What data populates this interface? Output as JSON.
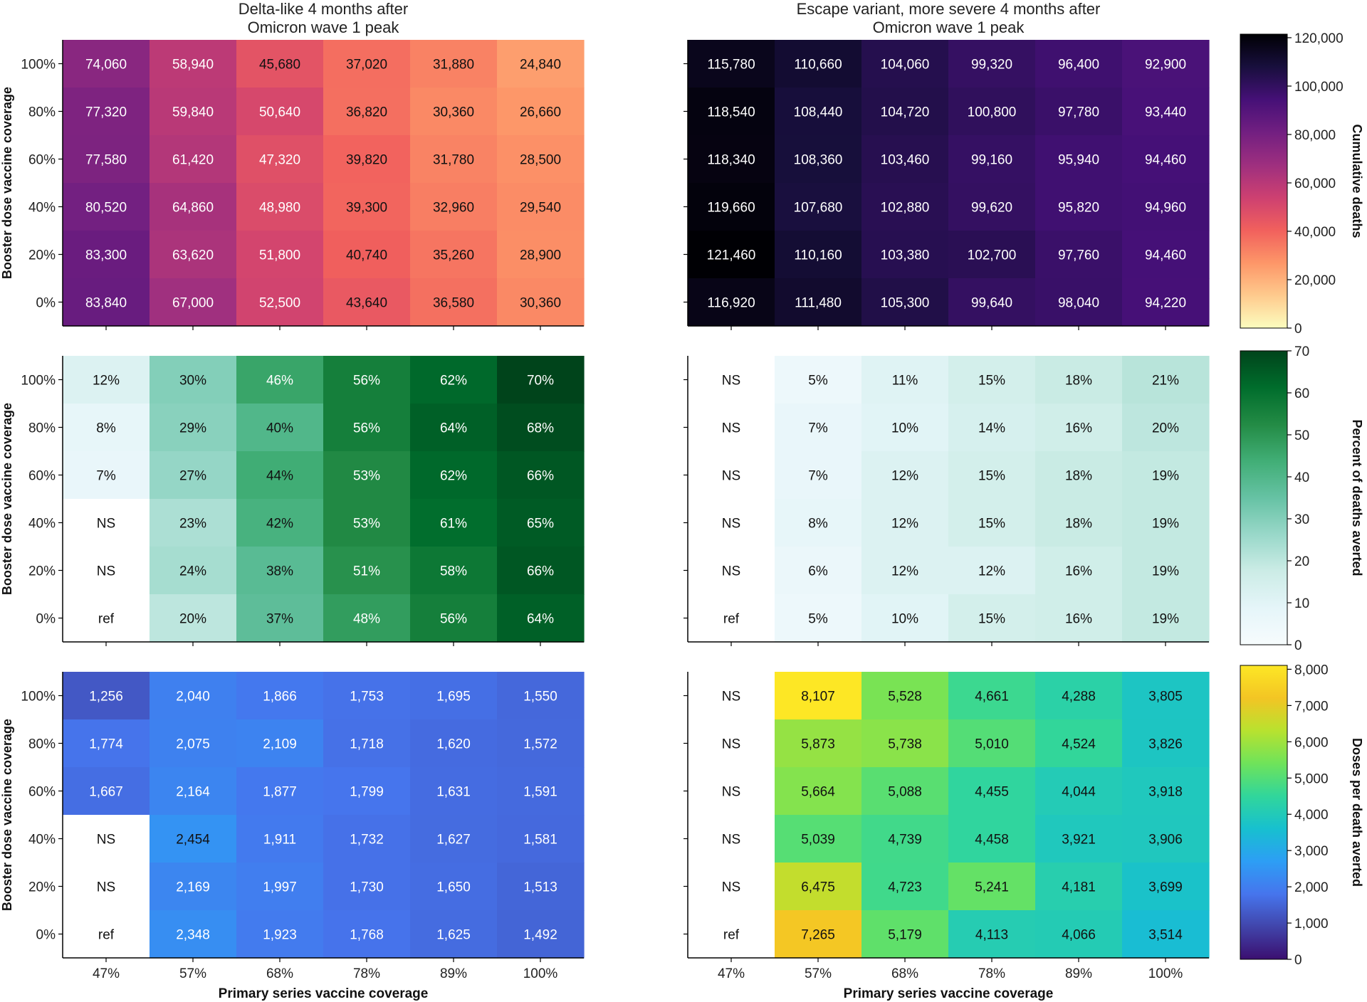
{
  "figure": {
    "col_titles": [
      [
        "Delta-like 4 months after",
        "Omicron wave 1 peak"
      ],
      [
        "Escape variant, more severe 4 months after",
        "Omicron wave 1 peak"
      ]
    ],
    "row_ylabel": "Booster dose vaccine coverage",
    "xlabel": "Primary series vaccine coverage"
  },
  "chart_data": [
    {
      "type": "heatmap",
      "panel": "deaths-delta",
      "x_categories": [
        "47%",
        "57%",
        "68%",
        "78%",
        "89%",
        "100%"
      ],
      "y_categories": [
        "100%",
        "80%",
        "60%",
        "40%",
        "20%",
        "0%"
      ],
      "ylabel": "Booster dose vaccine coverage",
      "colorbar": "magma",
      "vmin": 0,
      "vmax": 121460,
      "values": [
        [
          74060,
          58940,
          45680,
          37020,
          31880,
          24840
        ],
        [
          77320,
          59840,
          50640,
          36820,
          30360,
          26660
        ],
        [
          77580,
          61420,
          47320,
          39820,
          31780,
          28500
        ],
        [
          80520,
          64860,
          48980,
          39300,
          32960,
          29540
        ],
        [
          83300,
          63620,
          51800,
          40740,
          35260,
          28900
        ],
        [
          83840,
          67000,
          52500,
          43640,
          36580,
          30360
        ]
      ],
      "labels": [
        [
          "74,060",
          "58,940",
          "45,680",
          "37,020",
          "31,880",
          "24,840"
        ],
        [
          "77,320",
          "59,840",
          "50,640",
          "36,820",
          "30,360",
          "26,660"
        ],
        [
          "77,580",
          "61,420",
          "47,320",
          "39,820",
          "31,780",
          "28,500"
        ],
        [
          "80,520",
          "64,860",
          "48,980",
          "39,300",
          "32,960",
          "29,540"
        ],
        [
          "83,300",
          "63,620",
          "51,800",
          "40,740",
          "35,260",
          "28,900"
        ],
        [
          "83,840",
          "67,000",
          "52,500",
          "43,640",
          "36,580",
          "30,360"
        ]
      ]
    },
    {
      "type": "heatmap",
      "panel": "deaths-escape",
      "x_categories": [
        "47%",
        "57%",
        "68%",
        "78%",
        "89%",
        "100%"
      ],
      "y_categories": [
        "100%",
        "80%",
        "60%",
        "40%",
        "20%",
        "0%"
      ],
      "colorbar": "magma",
      "vmin": 0,
      "vmax": 121460,
      "values": [
        [
          115780,
          110660,
          104060,
          99320,
          96400,
          92900
        ],
        [
          118540,
          108440,
          104720,
          100800,
          97780,
          93440
        ],
        [
          118340,
          108360,
          103460,
          99160,
          95940,
          94460
        ],
        [
          119660,
          107680,
          102880,
          99620,
          95820,
          94960
        ],
        [
          121460,
          110160,
          103380,
          102700,
          97760,
          94460
        ],
        [
          116920,
          111480,
          105300,
          99640,
          98040,
          94220
        ]
      ],
      "labels": [
        [
          "115,780",
          "110,660",
          "104,060",
          "99,320",
          "96,400",
          "92,900"
        ],
        [
          "118,540",
          "108,440",
          "104,720",
          "100,800",
          "97,780",
          "93,440"
        ],
        [
          "118,340",
          "108,360",
          "103,460",
          "99,160",
          "95,940",
          "94,460"
        ],
        [
          "119,660",
          "107,680",
          "102,880",
          "99,620",
          "95,820",
          "94,960"
        ],
        [
          "121,460",
          "110,160",
          "103,380",
          "102,700",
          "97,760",
          "94,460"
        ],
        [
          "116,920",
          "111,480",
          "105,300",
          "99,640",
          "98,040",
          "94,220"
        ]
      ]
    },
    {
      "type": "heatmap",
      "panel": "averted-delta",
      "x_categories": [
        "47%",
        "57%",
        "68%",
        "78%",
        "89%",
        "100%"
      ],
      "y_categories": [
        "100%",
        "80%",
        "60%",
        "40%",
        "20%",
        "0%"
      ],
      "ylabel": "Booster dose vaccine coverage",
      "colorbar": "greens",
      "vmin": 0,
      "vmax": 70,
      "values": [
        [
          12,
          30,
          46,
          56,
          62,
          70
        ],
        [
          8,
          29,
          40,
          56,
          64,
          68
        ],
        [
          7,
          27,
          44,
          53,
          62,
          66
        ],
        [
          null,
          23,
          42,
          53,
          61,
          65
        ],
        [
          null,
          24,
          38,
          51,
          58,
          66
        ],
        [
          null,
          20,
          37,
          48,
          56,
          64
        ]
      ],
      "labels": [
        [
          "12%",
          "30%",
          "46%",
          "56%",
          "62%",
          "70%"
        ],
        [
          "8%",
          "29%",
          "40%",
          "56%",
          "64%",
          "68%"
        ],
        [
          "7%",
          "27%",
          "44%",
          "53%",
          "62%",
          "66%"
        ],
        [
          "NS",
          "23%",
          "42%",
          "53%",
          "61%",
          "65%"
        ],
        [
          "NS",
          "24%",
          "38%",
          "51%",
          "58%",
          "66%"
        ],
        [
          "ref",
          "20%",
          "37%",
          "48%",
          "56%",
          "64%"
        ]
      ]
    },
    {
      "type": "heatmap",
      "panel": "averted-escape",
      "x_categories": [
        "47%",
        "57%",
        "68%",
        "78%",
        "89%",
        "100%"
      ],
      "y_categories": [
        "100%",
        "80%",
        "60%",
        "40%",
        "20%",
        "0%"
      ],
      "colorbar": "greens",
      "vmin": 0,
      "vmax": 70,
      "values": [
        [
          null,
          5,
          11,
          15,
          18,
          21
        ],
        [
          null,
          7,
          10,
          14,
          16,
          20
        ],
        [
          null,
          7,
          12,
          15,
          18,
          19
        ],
        [
          null,
          8,
          12,
          15,
          18,
          19
        ],
        [
          null,
          6,
          12,
          12,
          16,
          19
        ],
        [
          null,
          5,
          10,
          15,
          16,
          19
        ]
      ],
      "labels": [
        [
          "NS",
          "5%",
          "11%",
          "15%",
          "18%",
          "21%"
        ],
        [
          "NS",
          "7%",
          "10%",
          "14%",
          "16%",
          "20%"
        ],
        [
          "NS",
          "7%",
          "12%",
          "15%",
          "18%",
          "19%"
        ],
        [
          "NS",
          "8%",
          "12%",
          "15%",
          "18%",
          "19%"
        ],
        [
          "NS",
          "6%",
          "12%",
          "12%",
          "16%",
          "19%"
        ],
        [
          "ref",
          "5%",
          "10%",
          "15%",
          "16%",
          "19%"
        ]
      ]
    },
    {
      "type": "heatmap",
      "panel": "doses-delta",
      "x_categories": [
        "47%",
        "57%",
        "68%",
        "78%",
        "89%",
        "100%"
      ],
      "y_categories": [
        "100%",
        "80%",
        "60%",
        "40%",
        "20%",
        "0%"
      ],
      "ylabel": "Booster dose vaccine coverage",
      "xlabel": "Primary series vaccine coverage",
      "colorbar": "turbo",
      "vmin": 0,
      "vmax": 8107,
      "values": [
        [
          1256,
          2040,
          1866,
          1753,
          1695,
          1550
        ],
        [
          1774,
          2075,
          2109,
          1718,
          1620,
          1572
        ],
        [
          1667,
          2164,
          1877,
          1799,
          1631,
          1591
        ],
        [
          null,
          2454,
          1911,
          1732,
          1627,
          1581
        ],
        [
          null,
          2169,
          1997,
          1730,
          1650,
          1513
        ],
        [
          null,
          2348,
          1923,
          1768,
          1625,
          1492
        ]
      ],
      "labels": [
        [
          "1,256",
          "2,040",
          "1,866",
          "1,753",
          "1,695",
          "1,550"
        ],
        [
          "1,774",
          "2,075",
          "2,109",
          "1,718",
          "1,620",
          "1,572"
        ],
        [
          "1,667",
          "2,164",
          "1,877",
          "1,799",
          "1,631",
          "1,591"
        ],
        [
          "NS",
          "2,454",
          "1,911",
          "1,732",
          "1,627",
          "1,581"
        ],
        [
          "NS",
          "2,169",
          "1,997",
          "1,730",
          "1,650",
          "1,513"
        ],
        [
          "ref",
          "2,348",
          "1,923",
          "1,768",
          "1,625",
          "1,492"
        ]
      ]
    },
    {
      "type": "heatmap",
      "panel": "doses-escape",
      "x_categories": [
        "47%",
        "57%",
        "68%",
        "78%",
        "89%",
        "100%"
      ],
      "y_categories": [
        "100%",
        "80%",
        "60%",
        "40%",
        "20%",
        "0%"
      ],
      "xlabel": "Primary series vaccine coverage",
      "colorbar": "turbo",
      "vmin": 0,
      "vmax": 8107,
      "values": [
        [
          null,
          8107,
          5528,
          4661,
          4288,
          3805
        ],
        [
          null,
          5873,
          5738,
          5010,
          4524,
          3826
        ],
        [
          null,
          5664,
          5088,
          4455,
          4044,
          3918
        ],
        [
          null,
          5039,
          4739,
          4458,
          3921,
          3906
        ],
        [
          null,
          6475,
          4723,
          5241,
          4181,
          3699
        ],
        [
          null,
          7265,
          5179,
          4113,
          4066,
          3514
        ]
      ],
      "labels": [
        [
          "NS",
          "8,107",
          "5,528",
          "4,661",
          "4,288",
          "3,805"
        ],
        [
          "NS",
          "5,873",
          "5,738",
          "5,010",
          "4,524",
          "3,826"
        ],
        [
          "NS",
          "5,664",
          "5,088",
          "4,455",
          "4,044",
          "3,918"
        ],
        [
          "NS",
          "5,039",
          "4,739",
          "4,458",
          "3,921",
          "3,906"
        ],
        [
          "NS",
          "6,475",
          "4,723",
          "5,241",
          "4,181",
          "3,699"
        ],
        [
          "ref",
          "7,265",
          "5,179",
          "4,113",
          "4,066",
          "3,514"
        ]
      ]
    }
  ],
  "colorbars": [
    {
      "label": "Cumulative deaths",
      "vmin": 0,
      "vmax": 121460,
      "ticks": [
        0,
        20000,
        40000,
        60000,
        80000,
        100000,
        120000
      ],
      "tick_labels": [
        "0",
        "20,000",
        "40,000",
        "60,000",
        "80,000",
        "100,000",
        "120,000"
      ]
    },
    {
      "label": "Percent of deaths averted",
      "vmin": 0,
      "vmax": 70,
      "ticks": [
        0,
        10,
        20,
        30,
        40,
        50,
        60,
        70
      ],
      "tick_labels": [
        "0",
        "10",
        "20",
        "30",
        "40",
        "50",
        "60",
        "70"
      ]
    },
    {
      "label": "Doses per death averted",
      "vmin": 0,
      "vmax": 8107,
      "ticks": [
        0,
        1000,
        2000,
        3000,
        4000,
        5000,
        6000,
        7000,
        8000
      ],
      "tick_labels": [
        "0",
        "1,000",
        "2,000",
        "3,000",
        "4,000",
        "5,000",
        "6,000",
        "7,000",
        "8,000"
      ]
    }
  ],
  "colormaps": {
    "magma": [
      "#fcfdbf",
      "#feca8d",
      "#fd9668",
      "#f1605d",
      "#cd4071",
      "#9e2f7f",
      "#721f81",
      "#451077",
      "#180f3d",
      "#000004"
    ],
    "greens": [
      "#f7fcfd",
      "#e5f5f9",
      "#ccece6",
      "#99d8c9",
      "#66c2a4",
      "#41ae76",
      "#238b45",
      "#006d2c",
      "#00441b"
    ],
    "turbo": [
      "#3b0f70",
      "#4145ab",
      "#4675ed",
      "#2d9ef5",
      "#17c0cf",
      "#31d69b",
      "#6fe35a",
      "#b8e22f",
      "#f3c524",
      "#fde725"
    ]
  }
}
